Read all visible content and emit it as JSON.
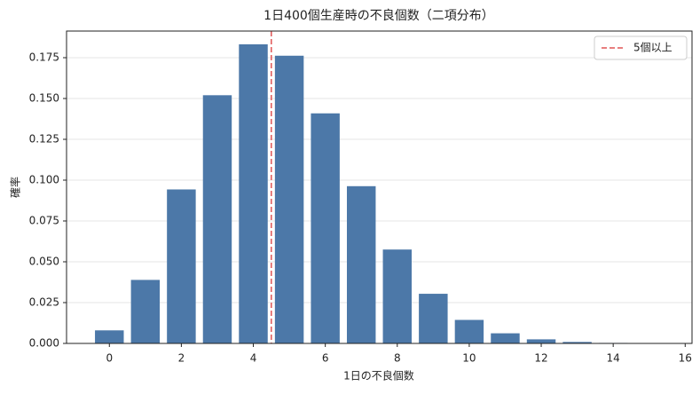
{
  "chart_data": {
    "type": "bar",
    "title": "1日400個生産時の不良個数（二項分布）",
    "x_label": "1日の不良個数",
    "y_label": "確率",
    "x": [
      0,
      1,
      2,
      3,
      4,
      5,
      6,
      7,
      8,
      9,
      10,
      11,
      12,
      13,
      14,
      15
    ],
    "values": [
      0.008,
      0.0389,
      0.0943,
      0.152,
      0.1832,
      0.1762,
      0.1409,
      0.0963,
      0.0575,
      0.0304,
      0.0144,
      0.0062,
      0.0025,
      0.0009,
      0.0003,
      0.0001
    ],
    "color": "#4c78a8",
    "xlim": [
      -1.19,
      16.19
    ],
    "xticks": [
      0,
      2,
      4,
      6,
      8,
      10,
      12,
      14,
      16
    ],
    "ylim": [
      0,
      0.1913
    ],
    "yticks": [
      {
        "value": 0,
        "label": "0.000"
      },
      {
        "value": 0.025,
        "label": "0.025"
      },
      {
        "value": 0.05,
        "label": "0.050"
      },
      {
        "value": 0.075,
        "label": "0.075"
      },
      {
        "value": 0.1,
        "label": "0.100"
      },
      {
        "value": 0.125,
        "label": "0.125"
      },
      {
        "value": 0.15,
        "label": "0.150"
      },
      {
        "value": 0.175,
        "label": "0.175"
      }
    ],
    "grid": true,
    "reference_line": {
      "x": 4.5,
      "label": "5個以上",
      "color": "#e05555"
    },
    "legend": "upper right"
  }
}
